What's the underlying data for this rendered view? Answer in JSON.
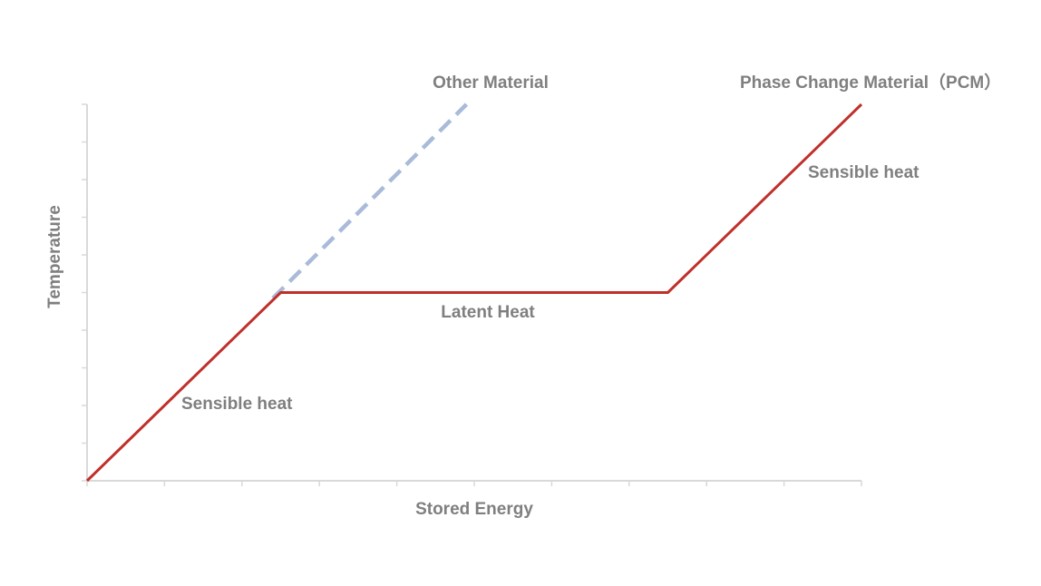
{
  "chart_data": {
    "type": "line",
    "title": "",
    "xlabel": "Stored Energy",
    "ylabel": "Temperature",
    "xlim": [
      0,
      10
    ],
    "ylim": [
      0,
      10
    ],
    "x_ticks_count": 10,
    "y_ticks_count": 10,
    "tick_labels_shown": false,
    "grid": false,
    "legend": "none",
    "series": [
      {
        "name": "Phase Change Material（PCM）",
        "color": "#c0302b",
        "style": "solid",
        "points": [
          [
            0,
            0
          ],
          [
            2.5,
            5
          ],
          [
            7.5,
            5
          ],
          [
            10,
            10
          ]
        ]
      },
      {
        "name": "Other Material",
        "color": "#a9bbd9",
        "style": "dashed",
        "points": [
          [
            2.4,
            4.85
          ],
          [
            4.9,
            10
          ]
        ]
      }
    ],
    "annotations": [
      {
        "text": "Sensible heat",
        "x": 1.2,
        "y": 2.0
      },
      {
        "text": "Latent Heat",
        "x": 4.95,
        "y": 4.5
      },
      {
        "text": "Sensible heat",
        "x": 10.05,
        "y": 8.2
      }
    ]
  }
}
